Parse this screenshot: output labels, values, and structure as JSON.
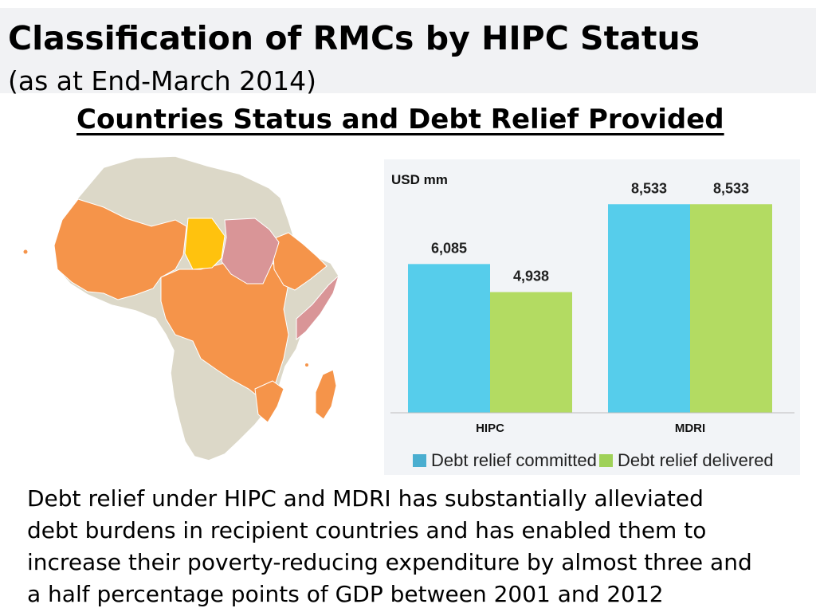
{
  "header": {
    "title": "Classification of RMCs by HIPC Status",
    "subtitle": "(as at End-March 2014)"
  },
  "section_heading": "Countries Status and Debt Relief Provided",
  "colors": {
    "map_base": "#dcd8c8",
    "map_hipc": "#f5944a",
    "map_yellow": "#ffc20e",
    "map_pink": "#d99597",
    "committed": "#56cdeb",
    "delivered": "#b3db62"
  },
  "chart_data": {
    "type": "bar",
    "unit_label": "USD mm",
    "categories": [
      "HIPC",
      "MDRI"
    ],
    "series": [
      {
        "name": "Debt relief committed",
        "values": [
          6085,
          8533
        ],
        "labels": [
          "6,085",
          "8,533"
        ]
      },
      {
        "name": "Debt relief delivered",
        "values": [
          4938,
          8533
        ],
        "labels": [
          "4,938",
          "8,533"
        ]
      }
    ],
    "ylim": [
      0,
      10000
    ],
    "grid": false,
    "legend": "bottom"
  },
  "body_text": [
    "Debt relief under HIPC and MDRI has substantially alleviated",
    "debt burdens in recipient countries and has enabled them to",
    "increase their poverty-reducing expenditure by almost three and",
    "a half percentage points of GDP between 2001 and 2012"
  ]
}
